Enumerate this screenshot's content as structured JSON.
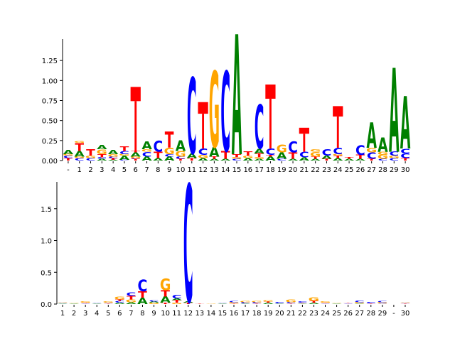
{
  "chart_data": [
    {
      "type": "sequence_logo",
      "panel": "top",
      "ylim": [
        0,
        1.5
      ],
      "yticks": [
        "0.00",
        "0.25",
        "0.50",
        "0.75",
        "1.00",
        "1.25"
      ],
      "xticks": [
        "-",
        "1",
        "2",
        "3",
        "4",
        "5",
        "6",
        "7",
        "8",
        "9",
        "10",
        "11",
        "12",
        "13",
        "14",
        "15",
        "16",
        "17",
        "18",
        "19",
        "20",
        "21",
        "22",
        "23",
        "24",
        "25",
        "26",
        "27",
        "28",
        "29",
        "30"
      ],
      "positions": [
        [
          [
            "T",
            0.03
          ],
          [
            "C",
            0.03
          ],
          [
            "G",
            0.02
          ],
          [
            "A",
            0.05
          ]
        ],
        [
          [
            "C",
            0.03
          ],
          [
            "G",
            0.02
          ],
          [
            "A",
            0.07
          ],
          [
            "T",
            0.1
          ],
          [
            "G",
            0.02
          ]
        ],
        [
          [
            "C",
            0.03
          ],
          [
            "G",
            0.03
          ],
          [
            "T",
            0.08
          ]
        ],
        [
          [
            "A",
            0.02
          ],
          [
            "C",
            0.02
          ],
          [
            "T",
            0.04
          ],
          [
            "G",
            0.06
          ],
          [
            "A",
            0.05
          ]
        ],
        [
          [
            "A",
            0.01
          ],
          [
            "T",
            0.02
          ],
          [
            "C",
            0.02
          ],
          [
            "G",
            0.03
          ],
          [
            "A",
            0.05
          ]
        ],
        [
          [
            "C",
            0.01
          ],
          [
            "A",
            0.05
          ],
          [
            "G",
            0.02
          ],
          [
            "C",
            0.04
          ],
          [
            "T",
            0.06
          ]
        ],
        [
          [
            "T",
            0.02
          ],
          [
            "C",
            0.01
          ],
          [
            "G",
            0.02
          ],
          [
            "A",
            0.05
          ],
          [
            "T",
            0.02
          ]
        ],
        [
          [
            "A",
            0.05
          ],
          [
            "C",
            0.06
          ],
          [
            "G",
            0.03
          ],
          [
            "A",
            0.1
          ]
        ],
        [
          [
            "A",
            0.03
          ],
          [
            "T",
            0.08
          ],
          [
            "C",
            0.14
          ]
        ],
        [
          [
            "A",
            0.05
          ],
          [
            "C",
            0.03
          ],
          [
            "G",
            0.08
          ],
          [
            "T",
            0.2
          ]
        ],
        [
          [
            "T",
            0.02
          ],
          [
            "C",
            0.03
          ],
          [
            "G",
            0.07
          ],
          [
            "A",
            0.13
          ]
        ],
        [
          [
            "T",
            0.03
          ],
          [
            "A",
            0.06
          ],
          [
            "C",
            0.95
          ]
        ],
        [
          [
            "A",
            0.03
          ],
          [
            "G",
            0.04
          ],
          [
            "C",
            0.08
          ]
        ],
        [
          [
            "A",
            0.02
          ],
          [
            "T",
            0.03
          ],
          [
            "A",
            0.12
          ],
          [
            "G",
            0.95
          ]
        ],
        [
          [
            "A",
            0.02
          ],
          [
            "T",
            0.1
          ],
          [
            "C",
            1.0
          ]
        ],
        [
          [
            "C",
            0.02
          ],
          [
            "G",
            0.02
          ],
          [
            "T",
            0.04
          ],
          [
            "A",
            1.5
          ]
        ],
        [
          [
            "A",
            0.03
          ],
          [
            "G",
            0.03
          ],
          [
            "T",
            0.05
          ]
        ],
        [
          [
            "A",
            0.02
          ],
          [
            "G",
            0.02
          ],
          [
            "T",
            0.05
          ],
          [
            "A",
            0.06
          ],
          [
            "C",
            0.55
          ]
        ],
        [
          [
            "A",
            0.05
          ],
          [
            "T",
            0.02
          ],
          [
            "C",
            0.08
          ]
        ],
        [
          [
            "C",
            0.02
          ],
          [
            "A",
            0.08
          ],
          [
            "G",
            0.1
          ]
        ],
        [
          [
            "A",
            0.02
          ],
          [
            "T",
            0.08
          ],
          [
            "C",
            0.14
          ]
        ],
        [
          [
            "A",
            0.04
          ],
          [
            "C",
            0.07
          ]
        ],
        [
          [
            "A",
            0.02
          ],
          [
            "T",
            0.03
          ],
          [
            "G",
            0.06
          ],
          [
            "G",
            0.03
          ]
        ],
        [
          [
            "T",
            0.02
          ],
          [
            "A",
            0.04
          ],
          [
            "C",
            0.08
          ]
        ],
        [
          [
            "A",
            0.03
          ],
          [
            "T",
            0.03
          ],
          [
            "G",
            0.02
          ],
          [
            "C",
            0.08
          ]
        ],
        [
          [
            "A",
            0.02
          ],
          [
            "T",
            0.02
          ]
        ],
        [
          [
            "A",
            0.02
          ],
          [
            "T",
            0.05
          ],
          [
            "C",
            0.12
          ]
        ],
        [
          [
            "T",
            0.02
          ],
          [
            "C",
            0.08
          ],
          [
            "G",
            0.06
          ],
          [
            "A",
            0.32
          ]
        ],
        [
          [
            "C",
            0.02
          ],
          [
            "G",
            0.05
          ],
          [
            "G",
            0.04
          ],
          [
            "A",
            0.18
          ]
        ],
        [
          [
            "C",
            0.03
          ],
          [
            "G",
            0.03
          ],
          [
            "C",
            0.05
          ],
          [
            "A",
            1.05
          ]
        ],
        [
          [
            "T",
            0.03
          ],
          [
            "C",
            0.06
          ],
          [
            "C",
            0.06
          ],
          [
            "A",
            0.65
          ]
        ]
      ],
      "tall_stems": [
        {
          "position": 6,
          "t_height": 0.8
        },
        {
          "position": 12,
          "t_height": 0.58
        },
        {
          "position": 18,
          "t_height": 0.8
        },
        {
          "position": 21,
          "t_height": 0.3
        },
        {
          "position": 24,
          "t_height": 0.52
        }
      ]
    },
    {
      "type": "sequence_logo",
      "panel": "bottom",
      "ylim": [
        0,
        1.9
      ],
      "yticks": [
        "0.0",
        "0.5",
        "1.0",
        "1.5"
      ],
      "xticks": [
        "1",
        "2",
        "3",
        "4",
        "5",
        "6",
        "7",
        "8",
        "9",
        "10",
        "11",
        "12",
        "13",
        "14",
        "15",
        "16",
        "17",
        "18",
        "19",
        "20",
        "21",
        "22",
        "23",
        "24",
        "25",
        "26",
        "27",
        "28",
        "29",
        "-",
        "30"
      ],
      "positions": [
        [
          [
            "A",
            0.01
          ],
          [
            "C",
            0.01
          ],
          [
            "G",
            0.01
          ]
        ],
        [
          [
            "A",
            0.01
          ],
          [
            "G",
            0.01
          ]
        ],
        [
          [
            "C",
            0.01
          ],
          [
            "T",
            0.01
          ],
          [
            "G",
            0.02
          ]
        ],
        [
          [
            "A",
            0.01
          ],
          [
            "C",
            0.01
          ]
        ],
        [
          [
            "T",
            0.01
          ],
          [
            "C",
            0.01
          ],
          [
            "G",
            0.02
          ]
        ],
        [
          [
            "A",
            0.02
          ],
          [
            "C",
            0.03
          ],
          [
            "T",
            0.02
          ],
          [
            "G",
            0.04
          ]
        ],
        [
          [
            "A",
            0.03
          ],
          [
            "G",
            0.04
          ],
          [
            "T",
            0.06
          ],
          [
            "C",
            0.06
          ]
        ],
        [
          [
            "A",
            0.1
          ],
          [
            "T",
            0.1
          ],
          [
            "C",
            0.18
          ]
        ],
        [
          [
            "G",
            0.02
          ],
          [
            "A",
            0.02
          ],
          [
            "C",
            0.02
          ]
        ],
        [
          [
            "T",
            0.02
          ],
          [
            "A",
            0.1
          ],
          [
            "T",
            0.1
          ],
          [
            "G",
            0.18
          ]
        ],
        [
          [
            "G",
            0.02
          ],
          [
            "T",
            0.04
          ],
          [
            "A",
            0.03
          ],
          [
            "C",
            0.06
          ]
        ],
        [
          [
            "T",
            0.02
          ],
          [
            "A",
            0.02
          ],
          [
            "C",
            1.85
          ]
        ],
        [
          [
            "T",
            0.01
          ]
        ],
        [
          [
            "G",
            0.01
          ]
        ],
        [
          [
            "A",
            0.01
          ],
          [
            "C",
            0.01
          ]
        ],
        [
          [
            "T",
            0.01
          ],
          [
            "G",
            0.02
          ],
          [
            "C",
            0.02
          ]
        ],
        [
          [
            "A",
            0.01
          ],
          [
            "C",
            0.02
          ],
          [
            "G",
            0.02
          ]
        ],
        [
          [
            "T",
            0.01
          ],
          [
            "C",
            0.02
          ],
          [
            "G",
            0.02
          ]
        ],
        [
          [
            "A",
            0.02
          ],
          [
            "T",
            0.02
          ],
          [
            "G",
            0.02
          ]
        ],
        [
          [
            "A",
            0.01
          ],
          [
            "C",
            0.02
          ]
        ],
        [
          [
            "T",
            0.01
          ],
          [
            "C",
            0.02
          ],
          [
            "G",
            0.04
          ]
        ],
        [
          [
            "A",
            0.01
          ],
          [
            "T",
            0.01
          ],
          [
            "C",
            0.02
          ]
        ],
        [
          [
            "A",
            0.02
          ],
          [
            "T",
            0.03
          ],
          [
            "G",
            0.06
          ]
        ],
        [
          [
            "C",
            0.01
          ],
          [
            "T",
            0.01
          ],
          [
            "G",
            0.02
          ]
        ],
        [
          [
            "A",
            0.01
          ],
          [
            "G",
            0.01
          ]
        ],
        [
          [
            "C",
            0.01
          ],
          [
            "T",
            0.01
          ]
        ],
        [
          [
            "A",
            0.01
          ],
          [
            "G",
            0.02
          ],
          [
            "C",
            0.03
          ]
        ],
        [
          [
            "T",
            0.01
          ],
          [
            "C",
            0.02
          ]
        ],
        [
          [
            "C",
            0.01
          ],
          [
            "G",
            0.02
          ],
          [
            "C",
            0.02
          ]
        ],
        [],
        [
          [
            "T",
            0.01
          ],
          [
            "C",
            0.01
          ],
          [
            "G",
            0.01
          ]
        ]
      ]
    }
  ],
  "colors": {
    "A": "#008000",
    "C": "#0000ff",
    "G": "#ffa500",
    "T": "#ff0000",
    "axis": "#000000"
  }
}
